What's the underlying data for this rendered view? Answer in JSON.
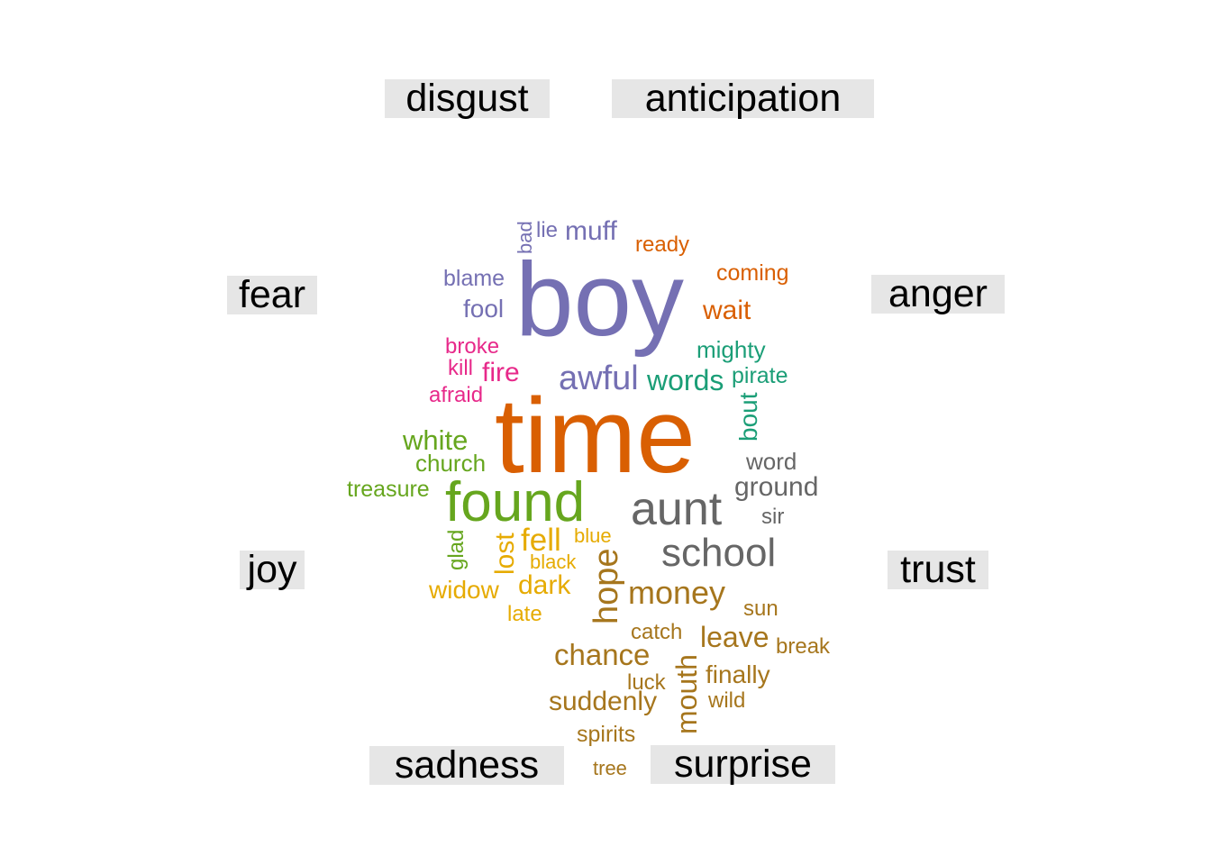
{
  "emotion_labels": {
    "disgust": "disgust",
    "anticipation": "anticipation",
    "fear": "fear",
    "anger": "anger",
    "joy": "joy",
    "trust": "trust",
    "sadness": "sadness",
    "surprise": "surprise"
  },
  "colors": {
    "purple": "#7570b3",
    "orange": "#d95f02",
    "magenta": "#e7298a",
    "teal": "#1b9e77",
    "green": "#66a61e",
    "yellow": "#e6ab02",
    "brown": "#a6761d",
    "gray": "#666666"
  },
  "words": [
    {
      "text": "boy",
      "group": "disgust",
      "color": "purple"
    },
    {
      "text": "bad",
      "group": "disgust",
      "color": "purple"
    },
    {
      "text": "lie",
      "group": "disgust",
      "color": "purple"
    },
    {
      "text": "muff",
      "group": "disgust",
      "color": "purple"
    },
    {
      "text": "blame",
      "group": "disgust",
      "color": "purple"
    },
    {
      "text": "fool",
      "group": "disgust",
      "color": "purple"
    },
    {
      "text": "awful",
      "group": "disgust",
      "color": "purple"
    },
    {
      "text": "ready",
      "group": "anticipation",
      "color": "orange"
    },
    {
      "text": "coming",
      "group": "anticipation",
      "color": "orange"
    },
    {
      "text": "wait",
      "group": "anticipation",
      "color": "orange"
    },
    {
      "text": "time",
      "group": "anticipation",
      "color": "orange"
    },
    {
      "text": "broke",
      "group": "fear",
      "color": "magenta"
    },
    {
      "text": "kill",
      "group": "fear",
      "color": "magenta"
    },
    {
      "text": "fire",
      "group": "fear",
      "color": "magenta"
    },
    {
      "text": "afraid",
      "group": "fear",
      "color": "magenta"
    },
    {
      "text": "mighty",
      "group": "anger",
      "color": "teal"
    },
    {
      "text": "words",
      "group": "anger",
      "color": "teal"
    },
    {
      "text": "pirate",
      "group": "anger",
      "color": "teal"
    },
    {
      "text": "bout",
      "group": "anger",
      "color": "teal"
    },
    {
      "text": "white",
      "group": "joy",
      "color": "green"
    },
    {
      "text": "church",
      "group": "joy",
      "color": "green"
    },
    {
      "text": "treasure",
      "group": "joy",
      "color": "green"
    },
    {
      "text": "found",
      "group": "joy",
      "color": "green"
    },
    {
      "text": "glad",
      "group": "joy",
      "color": "green"
    },
    {
      "text": "word",
      "group": "trust",
      "color": "gray"
    },
    {
      "text": "ground",
      "group": "trust",
      "color": "gray"
    },
    {
      "text": "aunt",
      "group": "trust",
      "color": "gray"
    },
    {
      "text": "sir",
      "group": "trust",
      "color": "gray"
    },
    {
      "text": "school",
      "group": "trust",
      "color": "gray"
    },
    {
      "text": "lost",
      "group": "sadness",
      "color": "yellow"
    },
    {
      "text": "fell",
      "group": "sadness",
      "color": "yellow"
    },
    {
      "text": "blue",
      "group": "sadness",
      "color": "yellow"
    },
    {
      "text": "black",
      "group": "sadness",
      "color": "yellow"
    },
    {
      "text": "widow",
      "group": "sadness",
      "color": "yellow"
    },
    {
      "text": "dark",
      "group": "sadness",
      "color": "yellow"
    },
    {
      "text": "late",
      "group": "sadness",
      "color": "yellow"
    },
    {
      "text": "hope",
      "group": "surprise",
      "color": "brown"
    },
    {
      "text": "money",
      "group": "surprise",
      "color": "brown"
    },
    {
      "text": "sun",
      "group": "surprise",
      "color": "brown"
    },
    {
      "text": "catch",
      "group": "surprise",
      "color": "brown"
    },
    {
      "text": "leave",
      "group": "surprise",
      "color": "brown"
    },
    {
      "text": "break",
      "group": "surprise",
      "color": "brown"
    },
    {
      "text": "chance",
      "group": "surprise",
      "color": "brown"
    },
    {
      "text": "mouth",
      "group": "surprise",
      "color": "brown"
    },
    {
      "text": "finally",
      "group": "surprise",
      "color": "brown"
    },
    {
      "text": "luck",
      "group": "surprise",
      "color": "brown"
    },
    {
      "text": "suddenly",
      "group": "surprise",
      "color": "brown"
    },
    {
      "text": "wild",
      "group": "surprise",
      "color": "brown"
    },
    {
      "text": "spirits",
      "group": "surprise",
      "color": "brown"
    },
    {
      "text": "tree",
      "group": "surprise",
      "color": "brown"
    }
  ]
}
